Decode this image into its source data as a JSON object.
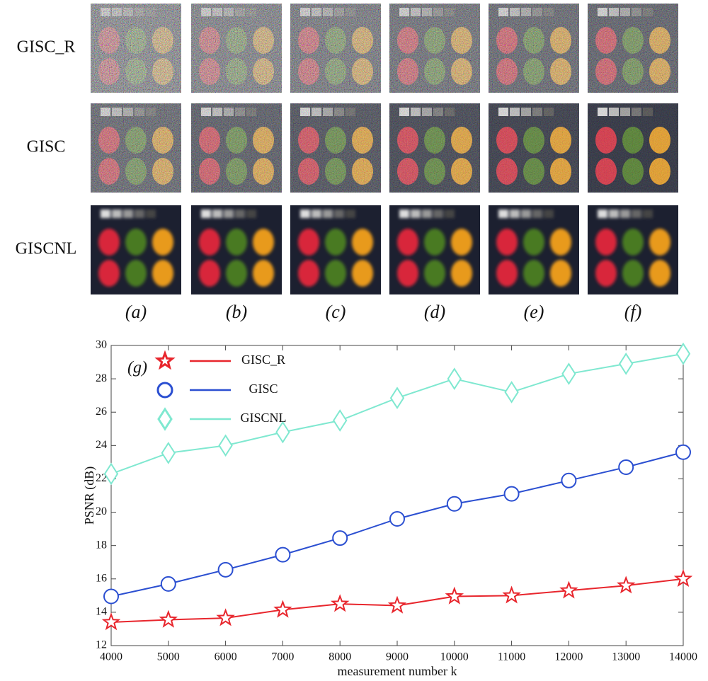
{
  "image_grid": {
    "rows": [
      "GISC_R",
      "GISC",
      "GISCNL"
    ],
    "panel_labels": [
      "(a)",
      "(b)",
      "(c)",
      "(d)",
      "(e)",
      "(f)"
    ]
  },
  "chart_data": {
    "type": "line",
    "annotation": "(g)",
    "x_label": "measurement number k",
    "y_label": "PSNR (dB)",
    "x": [
      4000,
      5000,
      6000,
      7000,
      8000,
      9000,
      10000,
      11000,
      12000,
      13000,
      14000
    ],
    "series": [
      {
        "name": "GISC_R",
        "color": "#e8262d",
        "marker": "star",
        "values": [
          13.4,
          13.55,
          13.65,
          14.15,
          14.5,
          14.4,
          14.95,
          15.0,
          15.3,
          15.6,
          16.0
        ]
      },
      {
        "name": "GISC",
        "color": "#2b4fd1",
        "marker": "circle",
        "values": [
          14.95,
          15.7,
          16.55,
          17.45,
          18.45,
          19.6,
          20.5,
          21.1,
          21.9,
          22.7,
          23.6
        ]
      },
      {
        "name": "GISCNL",
        "color": "#7fe8d0",
        "marker": "diamond",
        "values": [
          22.3,
          23.55,
          24.0,
          24.8,
          25.5,
          26.85,
          28.0,
          27.2,
          28.3,
          28.9,
          29.5
        ]
      }
    ],
    "xlim": [
      4000,
      14000
    ],
    "xticks": [
      4000,
      5000,
      6000,
      7000,
      8000,
      9000,
      10000,
      11000,
      12000,
      13000,
      14000
    ],
    "ylim": [
      12,
      30
    ],
    "yticks": [
      12,
      14,
      16,
      18,
      20,
      22,
      24,
      26,
      28,
      30
    ],
    "grid": false,
    "legend": "upper left"
  }
}
